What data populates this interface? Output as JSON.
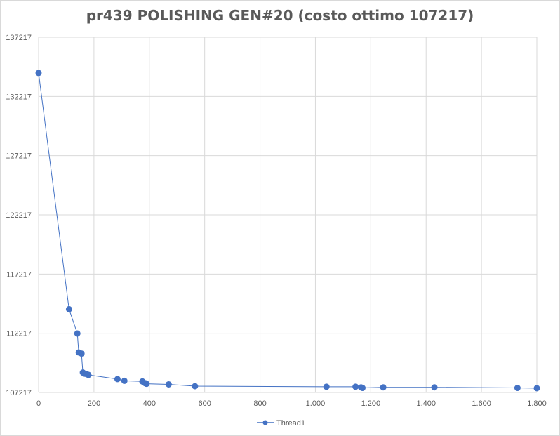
{
  "chart_data": {
    "type": "line",
    "title": "pr439 POLISHING GEN#20 (costo ottimo 107217)",
    "xlabel": "",
    "ylabel": "",
    "xlim": [
      0,
      1800
    ],
    "ylim": [
      107217,
      137217
    ],
    "x_ticks": [
      "0",
      "200",
      "400",
      "600",
      "800",
      "1.000",
      "1.200",
      "1.400",
      "1.600",
      "1.800"
    ],
    "y_ticks": [
      "137217",
      "132217",
      "127217",
      "122217",
      "117217",
      "112217",
      "107217"
    ],
    "grid": true,
    "legend_position": "bottom",
    "series": [
      {
        "name": "Thread1",
        "color": "#4472c4",
        "points": [
          [
            0,
            134200
          ],
          [
            110,
            114250
          ],
          [
            140,
            112200
          ],
          [
            145,
            110600
          ],
          [
            155,
            110500
          ],
          [
            160,
            108900
          ],
          [
            165,
            108800
          ],
          [
            175,
            108750
          ],
          [
            180,
            108700
          ],
          [
            285,
            108350
          ],
          [
            310,
            108200
          ],
          [
            375,
            108150
          ],
          [
            385,
            108000
          ],
          [
            390,
            107950
          ],
          [
            470,
            107900
          ],
          [
            565,
            107750
          ],
          [
            1040,
            107700
          ],
          [
            1145,
            107700
          ],
          [
            1165,
            107650
          ],
          [
            1170,
            107600
          ],
          [
            1245,
            107650
          ],
          [
            1430,
            107650
          ],
          [
            1730,
            107600
          ],
          [
            1800,
            107580
          ]
        ]
      }
    ]
  }
}
